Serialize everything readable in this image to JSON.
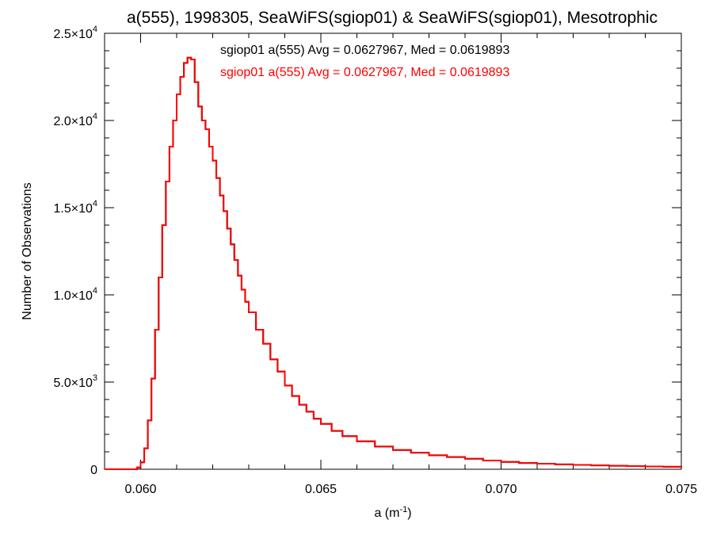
{
  "chart_data": {
    "type": "line",
    "title": "a(555), 1998305, SeaWiFS(sgiop01) & SeaWiFS(sgiop01), Mesotrophic",
    "xlabel_main": "a (m",
    "xlabel_sup": "-1",
    "xlabel_close": ")",
    "ylabel": "Number of Observations",
    "xlim": [
      0.059,
      0.075
    ],
    "ylim": [
      0,
      25000
    ],
    "x_ticks": [
      {
        "value": 0.06,
        "label": "0.060"
      },
      {
        "value": 0.065,
        "label": "0.065"
      },
      {
        "value": 0.07,
        "label": "0.070"
      },
      {
        "value": 0.075,
        "label": "0.075"
      }
    ],
    "y_ticks": [
      {
        "value": 0,
        "mantissa": "0",
        "exp": ""
      },
      {
        "value": 5000,
        "mantissa": "5.0×10",
        "exp": "3"
      },
      {
        "value": 10000,
        "mantissa": "1.0×10",
        "exp": "4"
      },
      {
        "value": 15000,
        "mantissa": "1.5×10",
        "exp": "4"
      },
      {
        "value": 20000,
        "mantissa": "2.0×10",
        "exp": "4"
      },
      {
        "value": 25000,
        "mantissa": "2.5×10",
        "exp": "4"
      }
    ],
    "grid": false,
    "step_plot": true,
    "annotations": [
      {
        "text": "sgiop01 a(555) Avg = 0.0627967, Med = 0.0619893",
        "color": "#000000"
      },
      {
        "text": "sgiop01 a(555) Avg = 0.0627967, Med = 0.0619893",
        "color": "#ff0000"
      }
    ],
    "series": [
      {
        "color": "#000000",
        "x": [
          0.059,
          0.0595,
          0.0598,
          0.0599,
          0.06,
          0.0601,
          0.0602,
          0.0603,
          0.0604,
          0.0605,
          0.0606,
          0.0607,
          0.0608,
          0.0609,
          0.061,
          0.0611,
          0.0612,
          0.0613,
          0.0614,
          0.0615,
          0.0616,
          0.0617,
          0.0618,
          0.0619,
          0.062,
          0.0621,
          0.0622,
          0.0623,
          0.0624,
          0.0625,
          0.0626,
          0.0627,
          0.0628,
          0.0629,
          0.063,
          0.0632,
          0.0634,
          0.0636,
          0.0638,
          0.064,
          0.0642,
          0.0644,
          0.0646,
          0.0648,
          0.065,
          0.0653,
          0.0656,
          0.066,
          0.0665,
          0.067,
          0.0675,
          0.068,
          0.0685,
          0.069,
          0.0695,
          0.07,
          0.0705,
          0.071,
          0.0715,
          0.072,
          0.0725,
          0.073,
          0.0735,
          0.074,
          0.0745,
          0.075
        ],
        "values": [
          0,
          0,
          0,
          100,
          400,
          1200,
          2800,
          5200,
          8000,
          11000,
          14000,
          16500,
          18500,
          20000,
          21500,
          22500,
          23300,
          23600,
          23500,
          22200,
          20800,
          20000,
          19500,
          18500,
          17700,
          16700,
          15700,
          14800,
          13800,
          12900,
          12000,
          11100,
          10300,
          9600,
          9000,
          8000,
          7200,
          6300,
          5600,
          4800,
          4200,
          3700,
          3300,
          2900,
          2600,
          2200,
          1900,
          1600,
          1300,
          1100,
          950,
          800,
          700,
          600,
          500,
          420,
          360,
          320,
          280,
          250,
          220,
          200,
          180,
          160,
          140,
          100
        ]
      },
      {
        "color": "#ff0000",
        "x": [
          0.059,
          0.0595,
          0.0598,
          0.0599,
          0.06,
          0.0601,
          0.0602,
          0.0603,
          0.0604,
          0.0605,
          0.0606,
          0.0607,
          0.0608,
          0.0609,
          0.061,
          0.0611,
          0.0612,
          0.0613,
          0.0614,
          0.0615,
          0.0616,
          0.0617,
          0.0618,
          0.0619,
          0.062,
          0.0621,
          0.0622,
          0.0623,
          0.0624,
          0.0625,
          0.0626,
          0.0627,
          0.0628,
          0.0629,
          0.063,
          0.0632,
          0.0634,
          0.0636,
          0.0638,
          0.064,
          0.0642,
          0.0644,
          0.0646,
          0.0648,
          0.065,
          0.0653,
          0.0656,
          0.066,
          0.0665,
          0.067,
          0.0675,
          0.068,
          0.0685,
          0.069,
          0.0695,
          0.07,
          0.0705,
          0.071,
          0.0715,
          0.072,
          0.0725,
          0.073,
          0.0735,
          0.074,
          0.0745,
          0.075
        ],
        "values": [
          0,
          0,
          0,
          100,
          400,
          1200,
          2800,
          5200,
          8000,
          11000,
          14000,
          16500,
          18500,
          20000,
          21500,
          22500,
          23300,
          23600,
          23500,
          22200,
          20800,
          20000,
          19500,
          18500,
          17700,
          16700,
          15700,
          14800,
          13800,
          12900,
          12000,
          11100,
          10300,
          9600,
          9000,
          8000,
          7200,
          6300,
          5600,
          4800,
          4200,
          3700,
          3300,
          2900,
          2600,
          2200,
          1900,
          1600,
          1300,
          1100,
          950,
          800,
          700,
          600,
          500,
          420,
          360,
          320,
          280,
          250,
          220,
          200,
          180,
          160,
          140,
          100
        ]
      }
    ]
  }
}
